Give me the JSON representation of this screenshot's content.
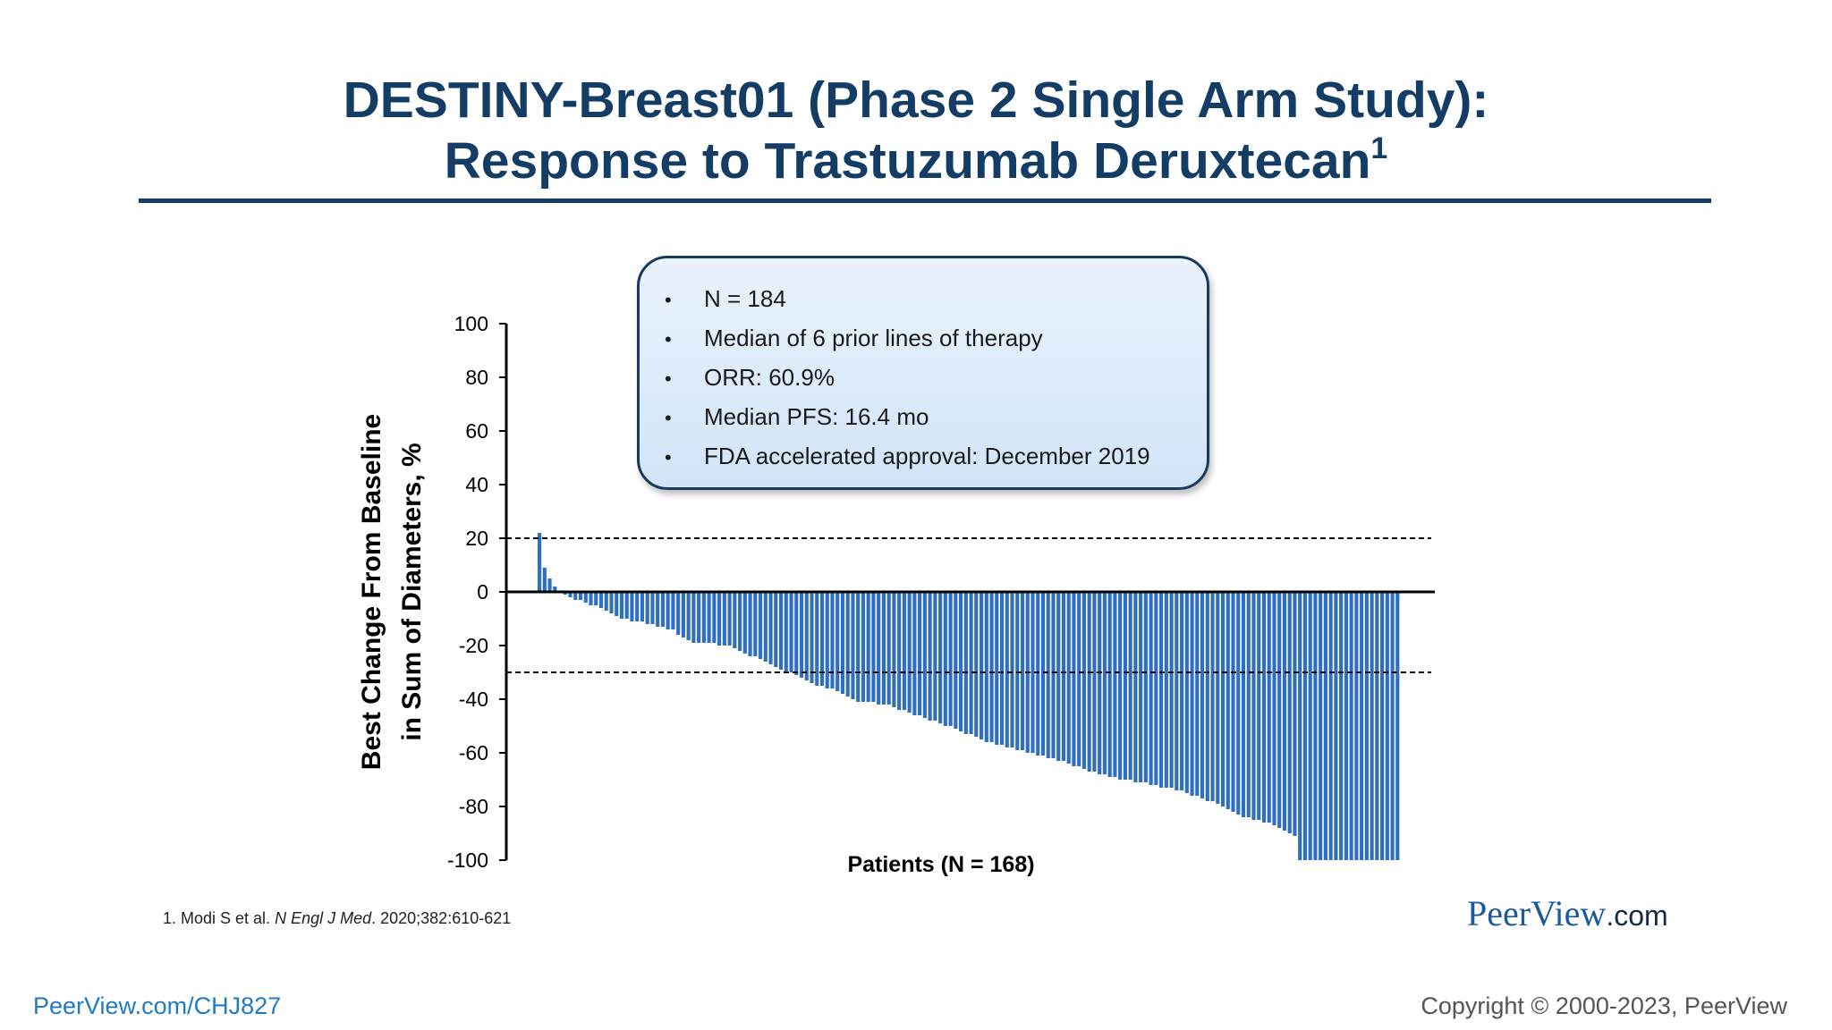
{
  "header": {
    "title_line1": "DESTINY-Breast01 (Phase 2 Single Arm Study):",
    "title_line2": "Response to Trastuzumab Deruxtecan",
    "title_sup": "1"
  },
  "info_box": {
    "items": [
      "N = 184",
      "Median of 6 prior lines of therapy",
      "ORR: 60.9%",
      "Median PFS: 16.4 mo",
      "FDA accelerated approval: December 2019"
    ]
  },
  "footnote": {
    "prefix": "1. Modi S et al. ",
    "journal": "N Engl J Med",
    "suffix": ". 2020;382:610-621"
  },
  "brand": {
    "name": "PeerView",
    "suffix": ".com"
  },
  "footer": {
    "url": "PeerView.com/CHJ827",
    "copyright": "Copyright © 2000-2023, PeerView"
  },
  "colors": {
    "title": "#143d66",
    "bar": "#2f6fc0",
    "brand": "#1e5a9a",
    "link": "#1f7bc4"
  },
  "chart_data": {
    "type": "bar",
    "title": "Response to Trastuzumab Deruxtecan",
    "xlabel": "Patients (N = 168)",
    "ylabel_line1": "Best Change From Baseline",
    "ylabel_line2": "in Sum of Diameters, %",
    "ylim": [
      -100,
      100
    ],
    "yticks": [
      100,
      80,
      60,
      40,
      20,
      0,
      -20,
      -40,
      -60,
      -80,
      -100
    ],
    "reference_lines": [
      20,
      -30
    ],
    "n_patients": 168,
    "values": [
      22,
      9,
      5,
      2,
      0,
      -1,
      -2,
      -3,
      -3,
      -4,
      -5,
      -5,
      -6,
      -7,
      -8,
      -9,
      -10,
      -10,
      -11,
      -11,
      -11,
      -12,
      -12,
      -13,
      -13,
      -14,
      -14,
      -16,
      -17,
      -18,
      -19,
      -19,
      -19,
      -19,
      -19,
      -20,
      -20,
      -20,
      -21,
      -22,
      -23,
      -24,
      -24,
      -25,
      -26,
      -27,
      -28,
      -29,
      -30,
      -30,
      -31,
      -32,
      -33,
      -34,
      -35,
      -35,
      -36,
      -36,
      -37,
      -38,
      -39,
      -40,
      -41,
      -41,
      -41,
      -41,
      -42,
      -42,
      -42,
      -43,
      -44,
      -44,
      -45,
      -46,
      -46,
      -47,
      -48,
      -48,
      -49,
      -50,
      -50,
      -51,
      -52,
      -53,
      -53,
      -54,
      -55,
      -56,
      -56,
      -57,
      -57,
      -58,
      -58,
      -59,
      -59,
      -60,
      -60,
      -61,
      -61,
      -62,
      -62,
      -63,
      -63,
      -64,
      -65,
      -65,
      -66,
      -67,
      -67,
      -68,
      -68,
      -69,
      -69,
      -70,
      -70,
      -70,
      -71,
      -71,
      -71,
      -72,
      -72,
      -73,
      -73,
      -73,
      -74,
      -74,
      -75,
      -76,
      -76,
      -77,
      -78,
      -78,
      -79,
      -80,
      -81,
      -82,
      -83,
      -84,
      -84,
      -85,
      -85,
      -86,
      -86,
      -87,
      -88,
      -89,
      -90,
      -91,
      -100,
      -100,
      -100,
      -100,
      -100,
      -100,
      -100,
      -100,
      -100,
      -100,
      -100,
      -100,
      -100,
      -100,
      -100,
      -100,
      -100,
      -100,
      -100,
      -100
    ]
  }
}
